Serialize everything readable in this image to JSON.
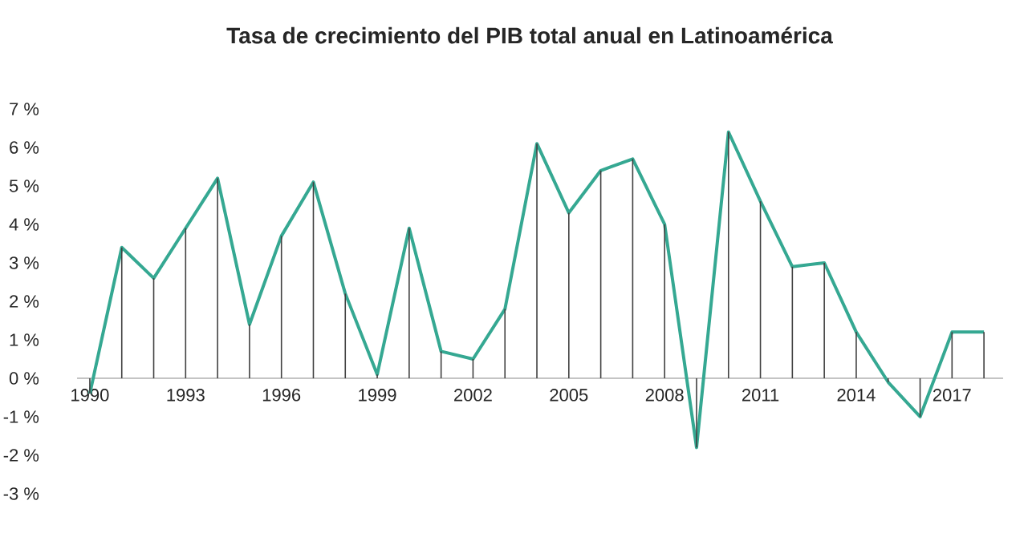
{
  "chart_data": {
    "type": "line",
    "title": "Tasa de crecimiento del PIB total anual en Latinoamérica",
    "x": [
      1990,
      1991,
      1992,
      1993,
      1994,
      1995,
      1996,
      1997,
      1998,
      1999,
      2000,
      2001,
      2002,
      2003,
      2004,
      2005,
      2006,
      2007,
      2008,
      2009,
      2010,
      2011,
      2012,
      2013,
      2014,
      2015,
      2016,
      2017,
      2018
    ],
    "series": [
      {
        "type": "bar",
        "color": "#404040",
        "values": [
          -0.4,
          3.4,
          2.6,
          3.9,
          5.2,
          1.4,
          3.7,
          5.1,
          2.2,
          0.1,
          3.9,
          0.7,
          0.5,
          1.8,
          6.1,
          4.3,
          5.4,
          5.7,
          4.0,
          -1.8,
          6.4,
          4.6,
          2.9,
          3.0,
          1.2,
          -0.1,
          -1.0,
          1.2,
          1.2
        ]
      },
      {
        "color": "#35a892",
        "values": [
          -0.4,
          3.4,
          2.6,
          3.9,
          5.2,
          1.4,
          3.7,
          5.1,
          2.2,
          0.1,
          3.9,
          0.7,
          0.5,
          1.8,
          6.1,
          4.3,
          5.4,
          5.7,
          4.0,
          -1.8,
          6.4,
          4.6,
          2.9,
          3.0,
          1.2,
          -0.1,
          -1.0,
          1.2,
          1.2
        ]
      }
    ],
    "xlim": [
      1989.6,
      2018.6
    ],
    "ylim": [
      -3,
      7
    ],
    "xticks": [
      1990,
      1993,
      1996,
      1999,
      2002,
      2005,
      2008,
      2011,
      2014,
      2017
    ],
    "yticks": [
      {
        "value": 7,
        "label": "7 %"
      },
      {
        "value": 6,
        "label": "6 %"
      },
      {
        "value": 5,
        "label": "5 %"
      },
      {
        "value": 4,
        "label": "4 %"
      },
      {
        "value": 3,
        "label": "3 %"
      },
      {
        "value": 2,
        "label": "2 %"
      },
      {
        "value": 1,
        "label": "1 %"
      },
      {
        "value": 0,
        "label": "0 %"
      },
      {
        "value": -1,
        "label": "-1 %"
      },
      {
        "value": -2,
        "label": "-2 %"
      },
      {
        "value": -3,
        "label": "-3 %"
      }
    ],
    "grid": false,
    "marker": "none",
    "line_style": "solid"
  }
}
